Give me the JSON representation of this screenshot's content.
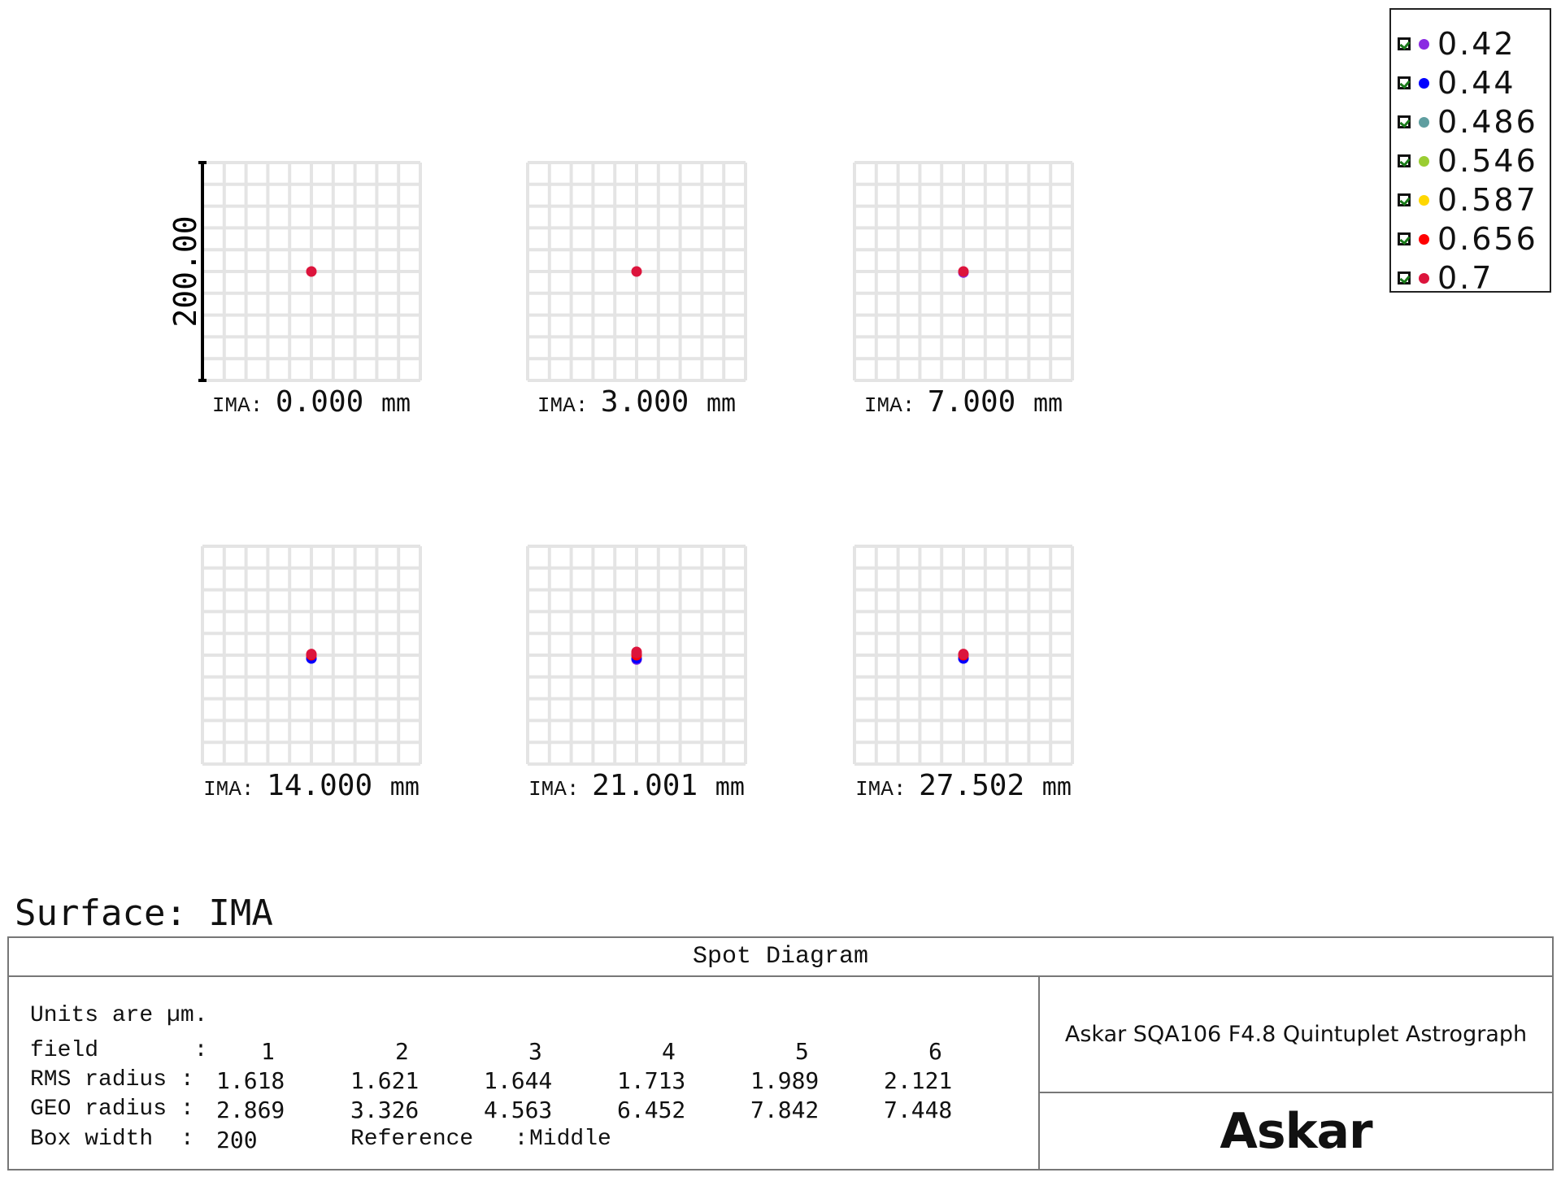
{
  "chart_data": {
    "type": "scatter",
    "title": "Spot Diagram",
    "units": "µm",
    "box_width": 200,
    "scale_bar_label": "200.00",
    "grid": true,
    "grid_divisions": 10,
    "legend_placement": "top-right",
    "wavelengths": [
      {
        "label": "0.42",
        "color": "#8a2be2",
        "checked": true
      },
      {
        "label": "0.44",
        "color": "#0000ff",
        "checked": true
      },
      {
        "label": "0.486",
        "color": "#5f9ea0",
        "checked": true
      },
      {
        "label": "0.546",
        "color": "#9acd32",
        "checked": true
      },
      {
        "label": "0.587",
        "color": "#ffd700",
        "checked": true
      },
      {
        "label": "0.656",
        "color": "#ff0000",
        "checked": true
      },
      {
        "label": "0.7",
        "color": "#dc143c",
        "checked": true
      }
    ],
    "panels": [
      {
        "surface_prefix": "IMA:",
        "field": "0.000",
        "unit": "mm",
        "spots": [
          {
            "w": 6,
            "x": 0,
            "y": 0
          }
        ]
      },
      {
        "surface_prefix": "IMA:",
        "field": "3.000",
        "unit": "mm",
        "spots": [
          {
            "w": 6,
            "x": 0,
            "y": 0
          }
        ]
      },
      {
        "surface_prefix": "IMA:",
        "field": "7.000",
        "unit": "mm",
        "spots": [
          {
            "w": 0,
            "x": 0,
            "y": -1
          },
          {
            "w": 6,
            "x": 0,
            "y": 0
          }
        ]
      },
      {
        "surface_prefix": "IMA:",
        "field": "14.000",
        "unit": "mm",
        "spots": [
          {
            "w": 0,
            "x": 0,
            "y": -3
          },
          {
            "w": 1,
            "x": 0,
            "y": -3
          },
          {
            "w": 5,
            "x": 0,
            "y": 0
          },
          {
            "w": 6,
            "x": 0,
            "y": 1
          }
        ]
      },
      {
        "surface_prefix": "IMA:",
        "field": "21.001",
        "unit": "mm",
        "spots": [
          {
            "w": 0,
            "x": 0,
            "y": -4
          },
          {
            "w": 1,
            "x": 0,
            "y": -3
          },
          {
            "w": 5,
            "x": 0,
            "y": 0
          },
          {
            "w": 6,
            "x": 0,
            "y": 2
          },
          {
            "w": 6,
            "x": 0,
            "y": 3
          }
        ]
      },
      {
        "surface_prefix": "IMA:",
        "field": "27.502",
        "unit": "mm",
        "spots": [
          {
            "w": 0,
            "x": 0,
            "y": -3
          },
          {
            "w": 1,
            "x": 0,
            "y": -3
          },
          {
            "w": 5,
            "x": 0,
            "y": 0
          },
          {
            "w": 6,
            "x": 0,
            "y": 1
          }
        ]
      }
    ]
  },
  "surface_label": "Surface: IMA",
  "table": {
    "title": "Spot Diagram",
    "units_line": "Units are µm.",
    "field_label": "field       :",
    "rms_label": "RMS radius :",
    "geo_label": "GEO radius :",
    "box_label": "Box width  :",
    "fields": [
      "1",
      "2",
      "3",
      "4",
      "5",
      "6"
    ],
    "rms": [
      "1.618",
      "1.621",
      "1.644",
      "1.713",
      "1.989",
      "2.121"
    ],
    "geo": [
      "2.869",
      "3.326",
      "4.563",
      "6.452",
      "7.842",
      "7.448"
    ],
    "box_width": "200",
    "reference_label": "Reference   :",
    "reference": "Middle",
    "lens_title": "Askar SQA106 F4.8 Quintuplet Astrograph",
    "logo": "Askar"
  }
}
